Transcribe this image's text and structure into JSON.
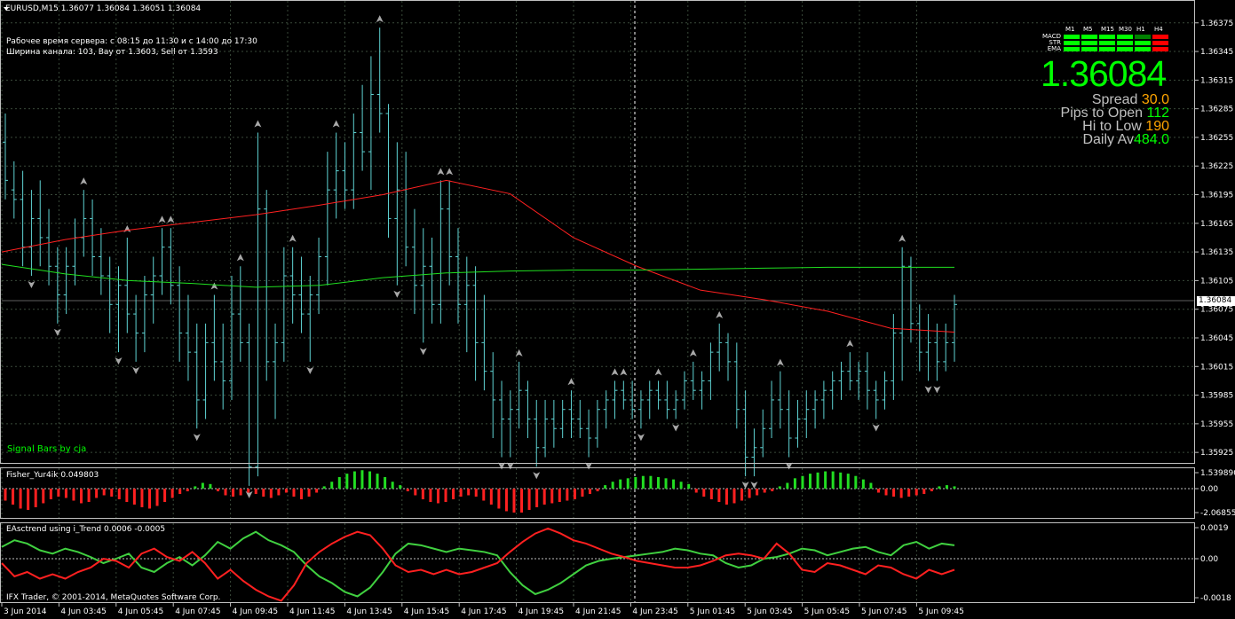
{
  "header": {
    "symbol_line": "EURUSD,M15  1.36077 1.36084 1.36051 1.36084",
    "server_hours": "Рабочее время сервера: с 08:15 до 11:30 и с 14:00 до 17:30",
    "channel": "Ширина канала: 103, Bay от 1.3603, Sell от 1.3593"
  },
  "signal_label": "Signal Bars by cja",
  "fisher_title": "Fisher_Yur4ik 0.049803",
  "eas_title": "EAsctrend using i_Trend 0.0006 -0.0005",
  "copyright": "IFX Trader, © 2001-2014, MetaQuotes Software Corp.",
  "price_axis": [
    "1.36375",
    "1.36345",
    "1.36315",
    "1.36285",
    "1.36255",
    "1.36225",
    "1.36195",
    "1.36165",
    "1.36135",
    "1.36105",
    "1.36075",
    "1.36045",
    "1.36015",
    "1.35985",
    "1.35955",
    "1.35925"
  ],
  "current_price_tag": "1.36084",
  "fisher_axis": [
    "1.539890",
    "0.00",
    "-2.068555"
  ],
  "eas_axis": [
    "0.0019",
    "0.00",
    "-0.0018"
  ],
  "time_axis": [
    "3 Jun 2014",
    "4 Jun 03:45",
    "4 Jun 05:45",
    "4 Jun 07:45",
    "4 Jun 09:45",
    "4 Jun 11:45",
    "4 Jun 13:45",
    "4 Jun 15:45",
    "4 Jun 17:45",
    "4 Jun 19:45",
    "4 Jun 21:45",
    "4 Jun 23:45",
    "5 Jun 01:45",
    "5 Jun 03:45",
    "5 Jun 05:45",
    "5 Jun 07:45",
    "5 Jun 09:45"
  ],
  "mtf": {
    "columns": [
      "M1",
      "M5",
      "M15",
      "M30",
      "H1",
      "H4"
    ],
    "rows": [
      "MACD",
      "STR",
      "EMA"
    ],
    "colors": [
      [
        "#00ff00",
        "#00ff00",
        "#00ff00",
        "#00ff00",
        "#008000",
        "#ff0000"
      ],
      [
        "#00ff00",
        "#00ff00",
        "#00ff00",
        "#00ff00",
        "#00ff00",
        "#ff0000"
      ],
      [
        "#00ff00",
        "#00ff00",
        "#00ff00",
        "#00ff00",
        "#00ff00",
        "#ff0000"
      ]
    ]
  },
  "big_price": "1.36084",
  "stats": [
    {
      "label": "Spread ",
      "value": "30.0",
      "color": "#ffa500"
    },
    {
      "label": "Pips to Open ",
      "value": "112",
      "color": "#00ff00"
    },
    {
      "label": "Hi to Low ",
      "value": "190",
      "color": "#ffa500"
    },
    {
      "label": "Daily Av",
      "value": "484.0",
      "color": "#00ff00"
    }
  ],
  "colors": {
    "grid": "#3a4a3a",
    "bar": "#5fd3d3",
    "ema_red": "#ff2020",
    "ema_green": "#20e020",
    "fisher_up": "#22dd22",
    "fisher_down": "#ff2020",
    "arrow": "#a8a8a8"
  },
  "chart_data": {
    "type": "line",
    "price_ylim": [
      1.35914,
      1.36398
    ],
    "bars": [
      [
        1.3625,
        1.3628,
        1.3619,
        1.3621
      ],
      [
        1.362,
        1.3623,
        1.3617,
        1.3619
      ],
      [
        1.3619,
        1.3622,
        1.3612,
        1.3614
      ],
      [
        1.3614,
        1.362,
        1.3611,
        1.3617
      ],
      [
        1.3617,
        1.3621,
        1.3612,
        1.3615
      ],
      [
        1.3615,
        1.3618,
        1.361,
        1.3612
      ],
      [
        1.3612,
        1.3614,
        1.3606,
        1.3609
      ],
      [
        1.3609,
        1.3614,
        1.3607,
        1.3612
      ],
      [
        1.3612,
        1.3617,
        1.361,
        1.3615
      ],
      [
        1.3615,
        1.362,
        1.3613,
        1.3617
      ],
      [
        1.3617,
        1.3619,
        1.3611,
        1.3613
      ],
      [
        1.3613,
        1.3616,
        1.3609,
        1.3611
      ],
      [
        1.3611,
        1.3613,
        1.3605,
        1.3608
      ],
      [
        1.3608,
        1.3612,
        1.3603,
        1.361
      ],
      [
        1.361,
        1.3615,
        1.3605,
        1.3607
      ],
      [
        1.3607,
        1.3609,
        1.3602,
        1.3605
      ],
      [
        1.3605,
        1.3611,
        1.3603,
        1.3609
      ],
      [
        1.3609,
        1.3613,
        1.3606,
        1.3611
      ],
      [
        1.3611,
        1.3616,
        1.3609,
        1.3614
      ],
      [
        1.3614,
        1.3616,
        1.3608,
        1.361
      ],
      [
        1.361,
        1.3612,
        1.3602,
        1.3605
      ],
      [
        1.3605,
        1.3609,
        1.36,
        1.3603
      ],
      [
        1.3603,
        1.3606,
        1.3595,
        1.3598
      ],
      [
        1.3598,
        1.3606,
        1.3596,
        1.3604
      ],
      [
        1.3604,
        1.3609,
        1.36,
        1.3602
      ],
      [
        1.3602,
        1.3606,
        1.3597,
        1.36
      ],
      [
        1.36,
        1.3611,
        1.3598,
        1.3607
      ],
      [
        1.3607,
        1.3612,
        1.3602,
        1.3604
      ],
      [
        1.3604,
        1.3606,
        1.3589,
        1.3591
      ],
      [
        1.3591,
        1.3626,
        1.359,
        1.3618
      ],
      [
        1.3618,
        1.362,
        1.36,
        1.3602
      ],
      [
        1.3602,
        1.3606,
        1.3596,
        1.3604
      ],
      [
        1.3604,
        1.3614,
        1.3602,
        1.3611
      ],
      [
        1.3611,
        1.3614,
        1.3606,
        1.3609
      ],
      [
        1.3609,
        1.3613,
        1.3605,
        1.3607
      ],
      [
        1.3607,
        1.3611,
        1.3602,
        1.3609
      ],
      [
        1.3609,
        1.3615,
        1.3607,
        1.3613
      ],
      [
        1.3613,
        1.3624,
        1.361,
        1.362
      ],
      [
        1.362,
        1.3626,
        1.3617,
        1.3622
      ],
      [
        1.3622,
        1.3625,
        1.3618,
        1.362
      ],
      [
        1.362,
        1.3628,
        1.3618,
        1.3626
      ],
      [
        1.3626,
        1.3631,
        1.3622,
        1.3624
      ],
      [
        1.3624,
        1.3634,
        1.362,
        1.363
      ],
      [
        1.363,
        1.3637,
        1.3626,
        1.3628
      ],
      [
        1.3628,
        1.3629,
        1.3615,
        1.3617
      ],
      [
        1.3617,
        1.3625,
        1.361,
        1.362
      ],
      [
        1.362,
        1.3624,
        1.3612,
        1.3614
      ],
      [
        1.3614,
        1.3618,
        1.3607,
        1.361
      ],
      [
        1.361,
        1.3616,
        1.3604,
        1.3612
      ],
      [
        1.3612,
        1.3615,
        1.3606,
        1.3608
      ],
      [
        1.3608,
        1.3621,
        1.3606,
        1.3618
      ],
      [
        1.3618,
        1.3621,
        1.361,
        1.3613
      ],
      [
        1.3613,
        1.3616,
        1.3606,
        1.3608
      ],
      [
        1.3608,
        1.3613,
        1.3603,
        1.361
      ],
      [
        1.361,
        1.3612,
        1.36,
        1.3604
      ],
      [
        1.3604,
        1.3609,
        1.3599,
        1.3601
      ],
      [
        1.3601,
        1.3603,
        1.3594,
        1.3598
      ],
      [
        1.3598,
        1.36,
        1.3592,
        1.3596
      ],
      [
        1.3596,
        1.3599,
        1.3592,
        1.3597
      ],
      [
        1.3597,
        1.3602,
        1.3595,
        1.3599
      ],
      [
        1.3599,
        1.36,
        1.3594,
        1.3596
      ],
      [
        1.3596,
        1.3598,
        1.3591,
        1.3593
      ],
      [
        1.3593,
        1.3598,
        1.3592,
        1.3596
      ],
      [
        1.3596,
        1.3598,
        1.3593,
        1.3595
      ],
      [
        1.3595,
        1.3598,
        1.3594,
        1.3597
      ],
      [
        1.3597,
        1.3599,
        1.3594,
        1.3596
      ],
      [
        1.3596,
        1.3598,
        1.3594,
        1.3595
      ],
      [
        1.3595,
        1.3597,
        1.3592,
        1.3594
      ],
      [
        1.3594,
        1.3598,
        1.3593,
        1.3597
      ],
      [
        1.3597,
        1.3599,
        1.3595,
        1.3598
      ],
      [
        1.3598,
        1.36,
        1.3596,
        1.3599
      ],
      [
        1.3599,
        1.36,
        1.3597,
        1.3598
      ],
      [
        1.3598,
        1.36,
        1.3596,
        1.3597
      ],
      [
        1.3597,
        1.3599,
        1.3595,
        1.3598
      ],
      [
        1.3598,
        1.36,
        1.3596,
        1.3599
      ],
      [
        1.3599,
        1.36,
        1.3597,
        1.3598
      ],
      [
        1.3598,
        1.36,
        1.3596,
        1.3597
      ],
      [
        1.3597,
        1.3599,
        1.3596,
        1.3598
      ],
      [
        1.3598,
        1.3601,
        1.3597,
        1.36
      ],
      [
        1.36,
        1.3602,
        1.3598,
        1.3599
      ],
      [
        1.3599,
        1.3601,
        1.3597,
        1.36
      ],
      [
        1.36,
        1.3604,
        1.3598,
        1.3603
      ],
      [
        1.3603,
        1.3606,
        1.3601,
        1.3604
      ],
      [
        1.3604,
        1.3605,
        1.36,
        1.3602
      ],
      [
        1.3602,
        1.3604,
        1.3595,
        1.3597
      ],
      [
        1.3597,
        1.3599,
        1.359,
        1.3592
      ],
      [
        1.3592,
        1.3595,
        1.359,
        1.3593
      ],
      [
        1.3593,
        1.3597,
        1.3592,
        1.3595
      ],
      [
        1.3595,
        1.36,
        1.3594,
        1.3598
      ],
      [
        1.3598,
        1.3601,
        1.3595,
        1.3597
      ],
      [
        1.3597,
        1.3599,
        1.3592,
        1.3594
      ],
      [
        1.3594,
        1.3598,
        1.3593,
        1.3596
      ],
      [
        1.3596,
        1.3599,
        1.3594,
        1.3597
      ],
      [
        1.3597,
        1.3599,
        1.3595,
        1.3598
      ],
      [
        1.3598,
        1.36,
        1.3596,
        1.3599
      ],
      [
        1.3599,
        1.3601,
        1.3597,
        1.36
      ],
      [
        1.36,
        1.3602,
        1.3598,
        1.3601
      ],
      [
        1.3601,
        1.3603,
        1.3599,
        1.36
      ],
      [
        1.36,
        1.3602,
        1.3598,
        1.3601
      ],
      [
        1.3601,
        1.3603,
        1.3597,
        1.3599
      ],
      [
        1.3599,
        1.36,
        1.3596,
        1.3598
      ],
      [
        1.3598,
        1.3601,
        1.3597,
        1.36
      ],
      [
        1.36,
        1.3607,
        1.3598,
        1.3605
      ],
      [
        1.3605,
        1.3614,
        1.36,
        1.3612
      ],
      [
        1.3612,
        1.3613,
        1.3604,
        1.3606
      ],
      [
        1.3606,
        1.3608,
        1.3601,
        1.3603
      ],
      [
        1.3603,
        1.3607,
        1.36,
        1.3604
      ],
      [
        1.3604,
        1.3606,
        1.36,
        1.3602
      ],
      [
        1.3602,
        1.3606,
        1.3601,
        1.3604
      ],
      [
        1.3604,
        1.3609,
        1.3602,
        1.3608
      ]
    ],
    "ema_red": [
      1.36135,
      1.36148,
      1.36158,
      1.36166,
      1.36174,
      1.36184,
      1.36195,
      1.3621,
      1.36196,
      1.3615,
      1.3612,
      1.36095,
      1.36085,
      1.36073,
      1.36055,
      1.36051
    ],
    "ema_green": [
      1.36122,
      1.36112,
      1.36105,
      1.36102,
      1.36098,
      1.361,
      1.36108,
      1.36113,
      1.36115,
      1.36116,
      1.36116,
      1.36117,
      1.36118,
      1.36119,
      1.36119,
      1.36119
    ],
    "fisher": [
      -0.9,
      -1.2,
      -1.5,
      -1.6,
      -1.4,
      -1.1,
      -0.8,
      -0.6,
      -0.7,
      -0.9,
      -1.1,
      -1.0,
      -0.7,
      -0.5,
      -0.6,
      -0.8,
      -1.0,
      -1.2,
      -1.4,
      -1.5,
      -1.3,
      -1.0,
      -0.7,
      -0.4,
      -0.2,
      0.2,
      0.5,
      0.4,
      -0.2,
      -0.5,
      -0.6,
      -0.5,
      -0.3,
      -0.4,
      -0.6,
      -0.7,
      -0.5,
      -0.3,
      -0.6,
      -0.8,
      -0.6,
      -0.3,
      0.2,
      0.6,
      1.0,
      1.3,
      1.5,
      1.6,
      1.5,
      1.3,
      1.0,
      0.6,
      0.3,
      -0.2,
      -0.5,
      -0.8,
      -1.0,
      -1.1,
      -1.0,
      -0.8,
      -0.6,
      -0.5,
      -0.6,
      -0.9,
      -1.2,
      -1.5,
      -1.7,
      -1.8,
      -1.8,
      -1.6,
      -1.4,
      -1.2,
      -1.1,
      -1.0,
      -0.9,
      -0.8,
      -0.6,
      -0.4,
      -0.2,
      0.3,
      0.6,
      0.8,
      0.9,
      1.0,
      1.1,
      1.1,
      1.0,
      0.9,
      0.8,
      0.6,
      0.4,
      -0.3,
      -0.6,
      -0.8,
      -1.0,
      -1.2,
      -1.1,
      -0.9,
      -0.7,
      -0.5,
      -0.3,
      -0.2,
      0.2,
      0.5,
      0.9,
      1.1,
      1.3,
      1.4,
      1.5,
      1.5,
      1.4,
      1.3,
      1.1,
      0.8,
      0.5,
      -0.3,
      -0.5,
      -0.6,
      -0.7,
      -0.6,
      -0.5,
      -0.4,
      -0.2,
      0.2,
      0.3,
      0.2
    ],
    "eas_green": [
      0.0007,
      0.0011,
      0.0009,
      0.0005,
      0.0003,
      0.0006,
      0.0004,
      0.0001,
      -0.0002,
      0.0,
      0.0003,
      -0.0004,
      -0.0006,
      -0.0002,
      0.0001,
      -0.0003,
      0.0002,
      0.001,
      0.0006,
      0.0012,
      0.0016,
      0.0011,
      0.0008,
      0.0004,
      -0.0003,
      -0.0008,
      -0.0011,
      -0.0015,
      -0.0017,
      -0.0013,
      -0.0006,
      0.0003,
      0.0009,
      0.0008,
      0.0006,
      0.0004,
      0.0006,
      0.0005,
      0.0004,
      0.0002,
      -0.0006,
      -0.0012,
      -0.0016,
      -0.0014,
      -0.0011,
      -0.0007,
      -0.0003,
      -0.0001,
      0.0,
      0.0001,
      0.0002,
      0.0003,
      0.0004,
      0.0006,
      0.0005,
      0.0003,
      0.0002,
      -0.0002,
      -0.0004,
      -0.0003,
      0.0,
      0.0001,
      0.0003,
      0.0006,
      0.0005,
      0.0002,
      0.0004,
      0.0006,
      0.0007,
      0.0004,
      0.0002,
      0.0008,
      0.001,
      0.0006,
      0.0009,
      0.0008
    ],
    "eas_red": [
      -0.0002,
      -0.0008,
      -0.0006,
      -0.0009,
      -0.0007,
      -0.0009,
      -0.0006,
      -0.0004,
      0.0,
      -0.0001,
      -0.0004,
      0.0003,
      0.0006,
      0.0001,
      -0.0001,
      0.0004,
      -0.0002,
      -0.0009,
      -0.0005,
      -0.001,
      -0.0014,
      -0.0017,
      -0.0019,
      -0.0012,
      -0.0002,
      0.0004,
      0.0009,
      0.0013,
      0.0016,
      0.0014,
      0.0006,
      -0.0003,
      -0.0006,
      -0.0005,
      -0.0007,
      -0.0005,
      -0.0007,
      -0.0006,
      -0.0004,
      -0.0002,
      0.0004,
      0.001,
      0.0015,
      0.0018,
      0.0015,
      0.0011,
      0.0009,
      0.0006,
      0.0003,
      0.0001,
      -0.0001,
      -0.0002,
      -0.0003,
      -0.0004,
      -0.0004,
      -0.0003,
      -0.0001,
      0.0002,
      0.0003,
      0.0002,
      0.0,
      0.0009,
      0.0003,
      -0.0005,
      -0.0006,
      -0.0002,
      -0.0003,
      -0.0005,
      -0.0007,
      -0.0003,
      -0.0004,
      -0.0007,
      -0.0009,
      -0.0005,
      -0.0007,
      -0.0005
    ]
  }
}
